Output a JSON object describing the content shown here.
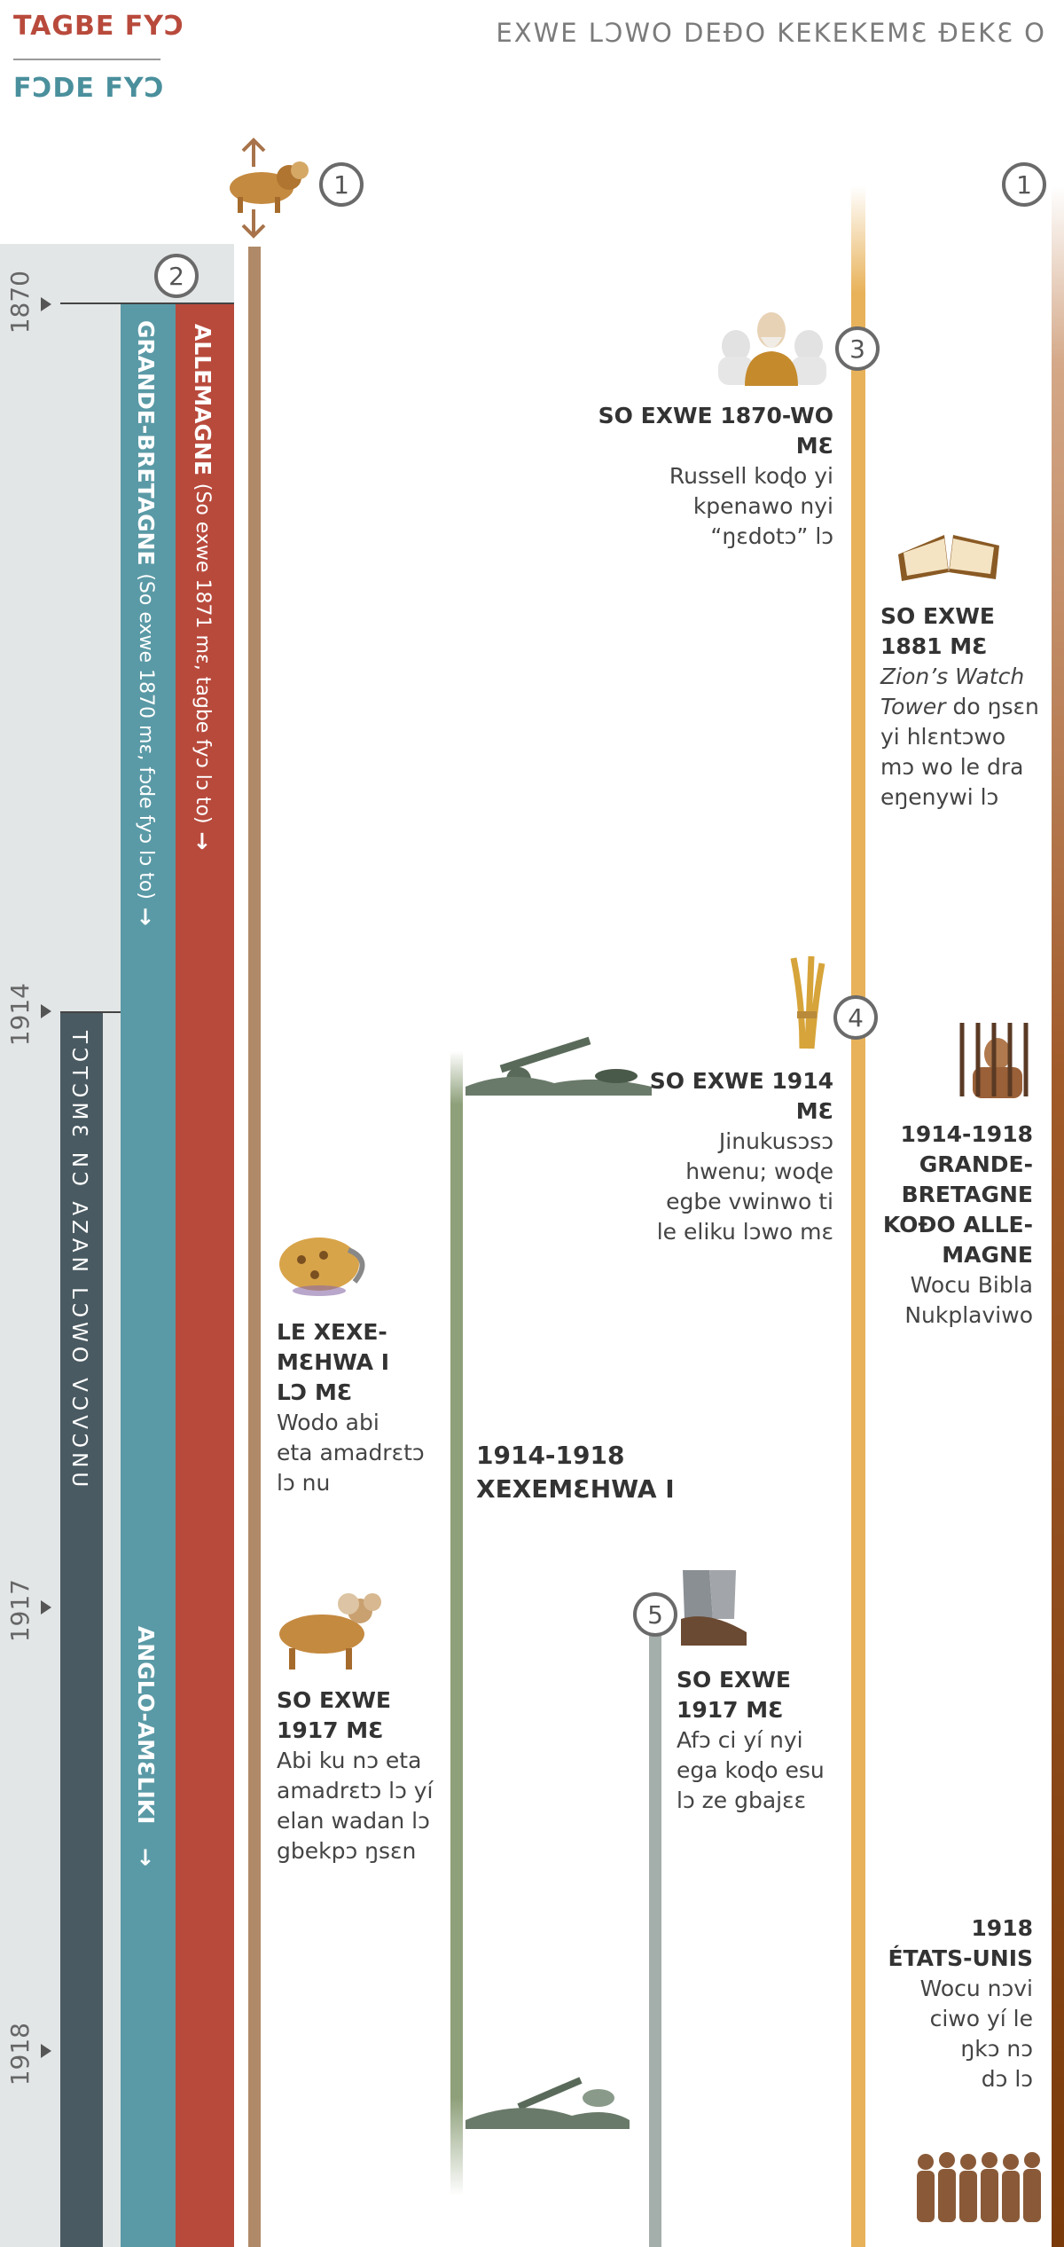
{
  "header": {
    "red_title": "TAGBE FYƆ",
    "teal_title": "FƆDE FYƆ",
    "right_title": "EXWE LƆWO DEƉO KEKEKEMƐ ƉEKƐ O"
  },
  "years": [
    "1870",
    "1914",
    "1917",
    "1918"
  ],
  "markers": {
    "m1a": "1",
    "m1b": "1",
    "m2": "2",
    "m3": "3",
    "m4": "4",
    "m5": "5"
  },
  "bars": {
    "allemagne": {
      "bold": "ALLEMAGNE",
      "light": "(So exwe 1871 mɛ, tagbe fyɔ lɔ to)",
      "arrow": "→"
    },
    "gb": {
      "bold": "GRANDE-BRETAGNE",
      "light": "(So exwe 1870 mɛ, fɔde fyɔ lɔ to)",
      "arrow": "→"
    },
    "angloam": {
      "bold": "ANGLO-AMƐLIKI",
      "arrow": "→"
    },
    "dark": {
      "text": "TƆTƆMƐ NƆ AZAN LƆWO VƆVƆNU"
    }
  },
  "events": {
    "e1870": {
      "head": [
        "SO EXWE 1870-WO",
        "MƐ"
      ],
      "body": [
        "Russell koɖo yi",
        "kpenawo nyi",
        "“ŋɛdotɔ” lɔ"
      ]
    },
    "e1881": {
      "head": [
        "SO EXWE",
        "1881 MƐ"
      ],
      "italic": [
        "Zion’s Watch",
        "Tower"
      ],
      "body_after_italic": " do ŋsɛn",
      "body": [
        "yi hlɛntɔwo",
        "mɔ wo le dra",
        "eŋenywi lɔ"
      ]
    },
    "e1914": {
      "head": [
        "SO EXWE 1914",
        "MƐ"
      ],
      "body": [
        "Jinukusɔsɔ",
        "hwenu; woɖe",
        "egbe vwinwo ti",
        "le eliku lɔwo mɛ"
      ]
    },
    "e1914b": {
      "head": [
        "1914-1918",
        "GRANDE-",
        "BRETAGNE",
        "KOƉO ALLE-",
        "MAGNE"
      ],
      "body": [
        "Wocu Bibla",
        "Nukplaviwo"
      ]
    },
    "ewar1": {
      "head": [
        "LE XEXE-",
        "MƐHWA I",
        "LƆ MƐ"
      ],
      "body": [
        "Wodo abi",
        "eta amadrɛtɔ",
        "lɔ nu"
      ]
    },
    "ewar": {
      "head": [
        "1914-1918",
        "XEXEMƐHWA I"
      ]
    },
    "e1917a": {
      "head": [
        "SO EXWE",
        "1917 MƐ"
      ],
      "body": [
        "Abi ku nɔ eta",
        "amadrɛtɔ lɔ yí",
        "elan wadan lɔ",
        "gbekpɔ ŋsɛn"
      ]
    },
    "e1917b": {
      "head": [
        "SO EXWE",
        "1917 MƐ"
      ],
      "body": [
        "Afɔ ci yí nyi",
        "ega koɖo esu",
        "lɔ ze gbajɛɛ"
      ]
    },
    "e1918": {
      "head": [
        "1918",
        "ÉTATS-UNIS"
      ],
      "body": [
        "Wocu nɔvi",
        "ciwo yí le",
        "ŋkɔ nɔ",
        "dɔ lɔ"
      ]
    }
  },
  "colors": {
    "red": "#b84a3c",
    "teal": "#5a9aa6",
    "dark": "#4a5a62",
    "gold": "#e8b25a",
    "green": "#8ea07a",
    "tan": "#b08a68"
  }
}
